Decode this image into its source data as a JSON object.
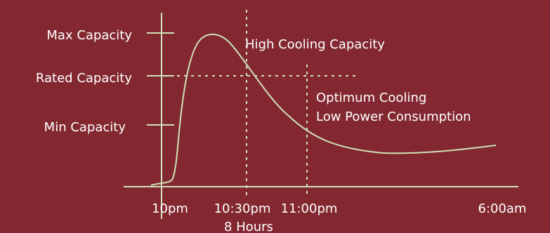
{
  "y_levels": {
    "max": "Max Capacity",
    "rated": "Rated Capacity",
    "min": "Min Capacity"
  },
  "annotations": {
    "high": "High Cooling Capacity",
    "optimum_line1": "Optimum Cooling",
    "optimum_line2": "Low Power Consumption"
  },
  "time_labels": {
    "start": "10pm",
    "t1030": "10:30pm",
    "t1100": "11:00pm",
    "end": "6:00am",
    "duration": "8 Hours"
  },
  "colors": {
    "background": "#832830",
    "line": "#cfe2b8",
    "text": "#ffffff"
  }
}
